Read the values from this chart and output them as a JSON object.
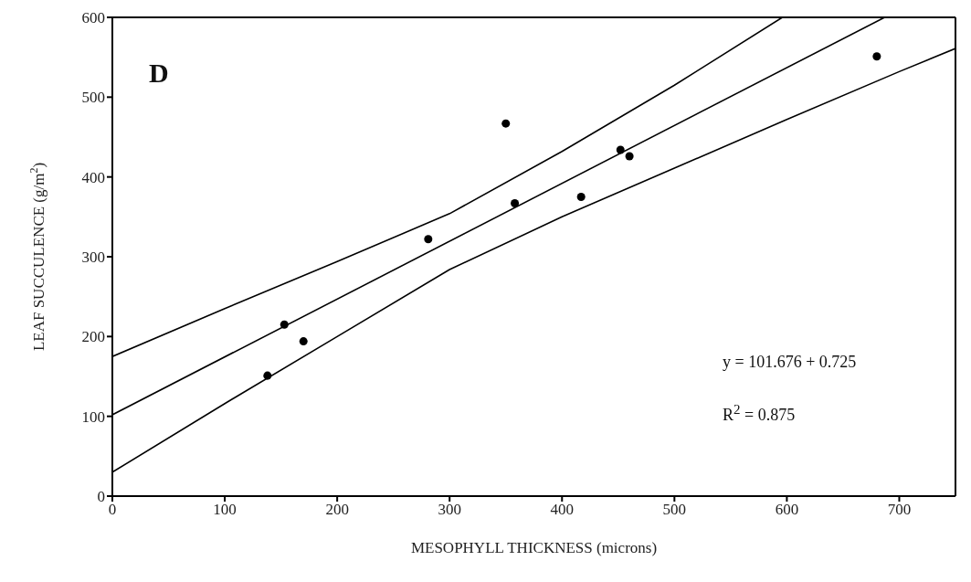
{
  "chart_data": {
    "type": "scatter",
    "xlabel": "MESOPHYLL THICKNESS (microns)",
    "ylabel": "LEAF SUCCULENCE (g/m$^{2}$)",
    "xlim": [
      0,
      750
    ],
    "ylim": [
      0,
      600
    ],
    "xticks": [
      0,
      100,
      200,
      300,
      400,
      500,
      600,
      700
    ],
    "yticks": [
      0,
      100,
      200,
      300,
      400,
      500,
      600
    ],
    "series": [
      {
        "type": "scatter",
        "color": "#000000",
        "marker": "circle",
        "x": [
          138,
          153,
          170,
          281,
          350,
          358,
          417,
          452,
          460,
          680
        ],
        "values": [
          151,
          215,
          194,
          322,
          467,
          367,
          375,
          434,
          426,
          551
        ]
      },
      {
        "type": "line",
        "color": "#000000",
        "marker": "none",
        "line_style": "solid",
        "x": [
          0,
          687
        ],
        "values": [
          102,
          600
        ]
      },
      {
        "type": "line",
        "color": "#000000",
        "marker": "none",
        "line_style": "solid",
        "x": [
          0,
          100,
          200,
          300,
          400,
          500,
          596
        ],
        "values": [
          175,
          235,
          294,
          354,
          432,
          515,
          600
        ]
      },
      {
        "type": "line",
        "color": "#000000",
        "marker": "none",
        "line_style": "solid",
        "x": [
          0,
          100,
          200,
          300,
          400,
          500,
          600,
          700,
          750
        ],
        "values": [
          30,
          116,
          200,
          284,
          350,
          411,
          472,
          532,
          561
        ]
      }
    ],
    "annotations": [
      "D",
      "y = 101.676 + 0.725",
      "R$^{2}$ = 0.875"
    ]
  }
}
